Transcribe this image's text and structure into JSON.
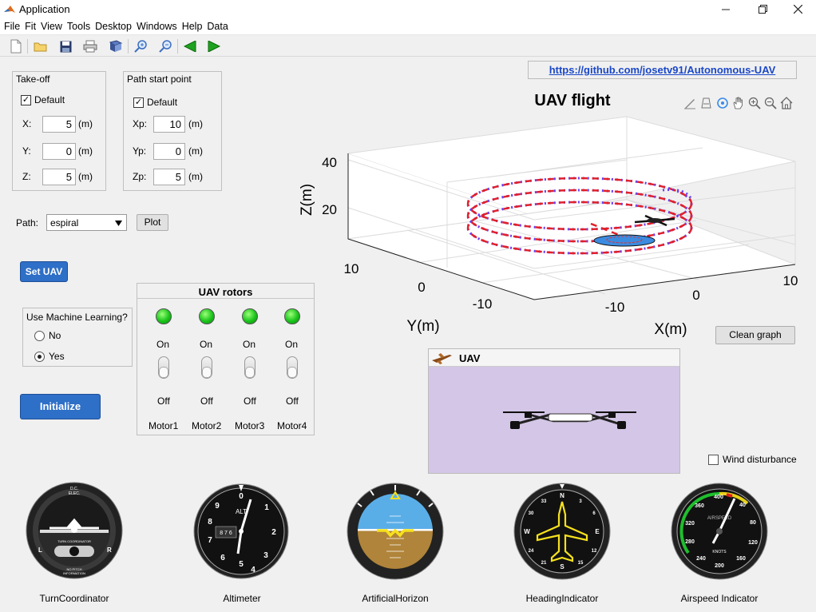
{
  "window": {
    "title": "Application"
  },
  "menu": [
    "File",
    "Fit",
    "View",
    "Tools",
    "Desktop",
    "Windows",
    "Help",
    "Data"
  ],
  "github_link": "https://github.com/josetv91/Autonomous-UAV",
  "takeoff": {
    "title": "Take-off",
    "default_label": "Default",
    "default_checked": true,
    "fields": [
      {
        "label": "X:",
        "value": "5",
        "unit": "(m)"
      },
      {
        "label": "Y:",
        "value": "0",
        "unit": "(m)"
      },
      {
        "label": "Z:",
        "value": "5",
        "unit": "(m)"
      }
    ]
  },
  "path_start": {
    "title": "Path start point",
    "default_label": "Default",
    "default_checked": true,
    "fields": [
      {
        "label": "Xp:",
        "value": "10",
        "unit": "(m)"
      },
      {
        "label": "Yp:",
        "value": "0",
        "unit": "(m)"
      },
      {
        "label": "Zp:",
        "value": "5",
        "unit": "(m)"
      }
    ]
  },
  "path": {
    "label": "Path:",
    "selected": "espiral",
    "plot_label": "Plot"
  },
  "set_uav_label": "Set UAV",
  "ml": {
    "title": "Use Machine Learning?",
    "options": [
      "No",
      "Yes"
    ],
    "selected": "Yes"
  },
  "initialize_label": "Initialize",
  "rotors": {
    "title": "UAV rotors",
    "on_label": "On",
    "off_label": "Off",
    "motors": [
      "Motor1",
      "Motor2",
      "Motor3",
      "Motor4"
    ]
  },
  "plot": {
    "title": "UAV flight",
    "zlabel": "Z(m)",
    "ylabel": "Y(m)",
    "xlabel": "X(m)",
    "zticks": [
      "40",
      "20"
    ],
    "yticks": [
      "10",
      "0",
      "-10"
    ],
    "xticks": [
      "-10",
      "0",
      "10"
    ]
  },
  "clean_graph_label": "Clean graph",
  "uav_view": {
    "title": "UAV",
    "background": "#d4c6e6"
  },
  "wind_label": "Wind disturbance",
  "wind_checked": false,
  "gauges": {
    "turn": {
      "label": "TurnCoordinator",
      "top": "D.C.\nELEC.",
      "mid": "TURN COORDINATOR",
      "bottom": "NO PITCH\nINFORMATION",
      "l": "L",
      "r": "R"
    },
    "alt": {
      "label": "Altimeter",
      "nums": [
        "0",
        "1",
        "2",
        "3",
        "4",
        "5",
        "6",
        "7",
        "8",
        "9"
      ],
      "drum": "8  7 6",
      "alt_text": "ALT"
    },
    "horizon": {
      "label": "ArtificialHorizon",
      "sky": "#5aaee8",
      "ground": "#b0843a"
    },
    "heading": {
      "label": "HeadingIndicator",
      "cardinals": [
        "N",
        "E",
        "S",
        "W"
      ],
      "ticks": [
        "33",
        "30",
        "24",
        "21",
        "15",
        "12",
        "6",
        "3"
      ]
    },
    "airspeed": {
      "label": "Airspeed Indicator",
      "nums": [
        "40",
        "80",
        "120",
        "160",
        "200",
        "240",
        "280",
        "320",
        "360",
        "400"
      ],
      "caption": "AIRSPEED",
      "unit": "KNOTS"
    }
  },
  "colors": {
    "accent_blue": "#2e6fc7",
    "link": "#1a47c7"
  }
}
